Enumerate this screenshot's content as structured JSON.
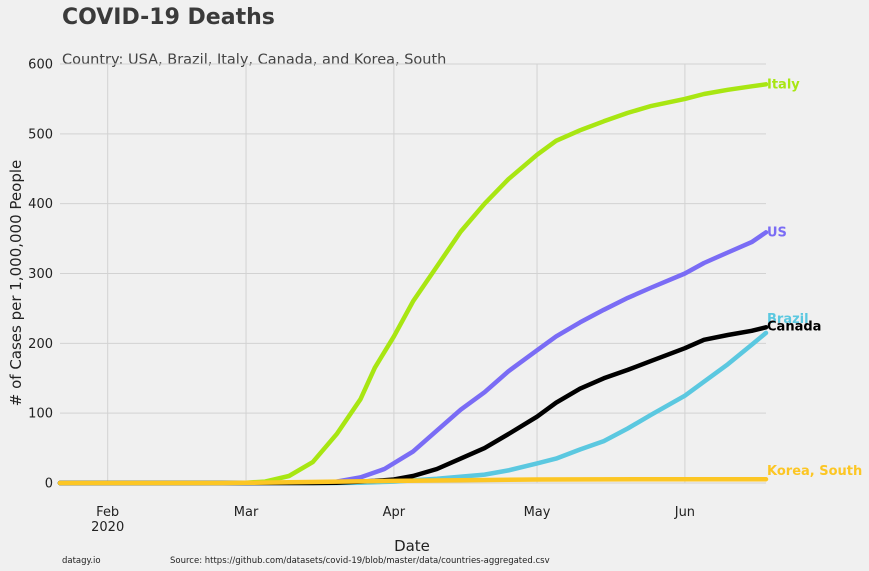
{
  "chart_data": {
    "type": "line",
    "title": "COVID-19 Deaths",
    "subtitle": "Country: USA, Brazil, Italy, Canada, and Korea, South",
    "xlabel": "Date",
    "ylabel": "# of Cases per 1,000,000 People",
    "x_ticks": [
      {
        "date": "2020-02-01",
        "label": "Feb",
        "sublabel": "2020"
      },
      {
        "date": "2020-03-01",
        "label": "Mar",
        "sublabel": ""
      },
      {
        "date": "2020-04-01",
        "label": "Apr",
        "sublabel": ""
      },
      {
        "date": "2020-05-01",
        "label": "May",
        "sublabel": ""
      },
      {
        "date": "2020-06-01",
        "label": "Jun",
        "sublabel": ""
      }
    ],
    "y_ticks": [
      0,
      100,
      200,
      300,
      400,
      500,
      600
    ],
    "xlim": [
      "2020-01-22",
      "2020-06-18"
    ],
    "ylim": [
      0,
      600
    ],
    "grid": true,
    "series": [
      {
        "name": "Italy",
        "color": "#a8e612",
        "points": [
          [
            "2020-01-22",
            0
          ],
          [
            "2020-02-20",
            0
          ],
          [
            "2020-03-01",
            0.5
          ],
          [
            "2020-03-05",
            2
          ],
          [
            "2020-03-10",
            10
          ],
          [
            "2020-03-15",
            30
          ],
          [
            "2020-03-20",
            70
          ],
          [
            "2020-03-25",
            120
          ],
          [
            "2020-03-28",
            165
          ],
          [
            "2020-04-01",
            210
          ],
          [
            "2020-04-05",
            260
          ],
          [
            "2020-04-10",
            310
          ],
          [
            "2020-04-15",
            360
          ],
          [
            "2020-04-20",
            400
          ],
          [
            "2020-04-25",
            435
          ],
          [
            "2020-05-01",
            470
          ],
          [
            "2020-05-05",
            490
          ],
          [
            "2020-05-10",
            505
          ],
          [
            "2020-05-15",
            518
          ],
          [
            "2020-05-20",
            530
          ],
          [
            "2020-05-25",
            540
          ],
          [
            "2020-06-01",
            550
          ],
          [
            "2020-06-05",
            557
          ],
          [
            "2020-06-10",
            563
          ],
          [
            "2020-06-15",
            568
          ],
          [
            "2020-06-18",
            571
          ]
        ]
      },
      {
        "name": "US",
        "color": "#7a6cf5",
        "points": [
          [
            "2020-01-22",
            0
          ],
          [
            "2020-03-10",
            0
          ],
          [
            "2020-03-15",
            0.5
          ],
          [
            "2020-03-20",
            2
          ],
          [
            "2020-03-25",
            8
          ],
          [
            "2020-03-30",
            20
          ],
          [
            "2020-04-05",
            45
          ],
          [
            "2020-04-10",
            75
          ],
          [
            "2020-04-15",
            105
          ],
          [
            "2020-04-20",
            130
          ],
          [
            "2020-04-25",
            160
          ],
          [
            "2020-05-01",
            190
          ],
          [
            "2020-05-05",
            210
          ],
          [
            "2020-05-10",
            230
          ],
          [
            "2020-05-15",
            248
          ],
          [
            "2020-05-20",
            265
          ],
          [
            "2020-05-25",
            280
          ],
          [
            "2020-06-01",
            300
          ],
          [
            "2020-06-05",
            315
          ],
          [
            "2020-06-10",
            330
          ],
          [
            "2020-06-15",
            345
          ],
          [
            "2020-06-18",
            359
          ]
        ]
      },
      {
        "name": "Brazil",
        "color": "#5bc8e0",
        "points": [
          [
            "2020-01-22",
            0
          ],
          [
            "2020-03-20",
            0
          ],
          [
            "2020-03-25",
            0.5
          ],
          [
            "2020-04-01",
            2
          ],
          [
            "2020-04-10",
            6
          ],
          [
            "2020-04-20",
            12
          ],
          [
            "2020-04-25",
            18
          ],
          [
            "2020-05-01",
            28
          ],
          [
            "2020-05-05",
            35
          ],
          [
            "2020-05-10",
            48
          ],
          [
            "2020-05-15",
            60
          ],
          [
            "2020-05-20",
            78
          ],
          [
            "2020-05-25",
            98
          ],
          [
            "2020-06-01",
            125
          ],
          [
            "2020-06-05",
            145
          ],
          [
            "2020-06-10",
            170
          ],
          [
            "2020-06-15",
            198
          ],
          [
            "2020-06-18",
            215
          ]
        ]
      },
      {
        "name": "Canada",
        "color": "#000000",
        "points": [
          [
            "2020-01-22",
            0
          ],
          [
            "2020-03-15",
            0
          ],
          [
            "2020-03-20",
            0.5
          ],
          [
            "2020-03-28",
            3
          ],
          [
            "2020-04-01",
            5
          ],
          [
            "2020-04-05",
            10
          ],
          [
            "2020-04-10",
            20
          ],
          [
            "2020-04-15",
            35
          ],
          [
            "2020-04-20",
            50
          ],
          [
            "2020-04-25",
            70
          ],
          [
            "2020-05-01",
            95
          ],
          [
            "2020-05-05",
            115
          ],
          [
            "2020-05-10",
            135
          ],
          [
            "2020-05-15",
            150
          ],
          [
            "2020-05-20",
            162
          ],
          [
            "2020-05-25",
            175
          ],
          [
            "2020-06-01",
            193
          ],
          [
            "2020-06-05",
            205
          ],
          [
            "2020-06-10",
            212
          ],
          [
            "2020-06-15",
            218
          ],
          [
            "2020-06-18",
            223
          ]
        ]
      },
      {
        "name": "Korea, South",
        "color": "#fcc624",
        "points": [
          [
            "2020-01-22",
            0
          ],
          [
            "2020-02-25",
            0
          ],
          [
            "2020-03-01",
            0.3
          ],
          [
            "2020-03-10",
            1
          ],
          [
            "2020-03-20",
            2
          ],
          [
            "2020-04-01",
            3
          ],
          [
            "2020-04-15",
            4
          ],
          [
            "2020-05-01",
            5
          ],
          [
            "2020-06-01",
            5.5
          ],
          [
            "2020-06-18",
            5.5
          ]
        ]
      }
    ]
  },
  "footer": {
    "credit": "datagy.io",
    "source": "Source: https://github.com/datasets/covid-19/blob/master/data/countries-aggregated.csv"
  }
}
